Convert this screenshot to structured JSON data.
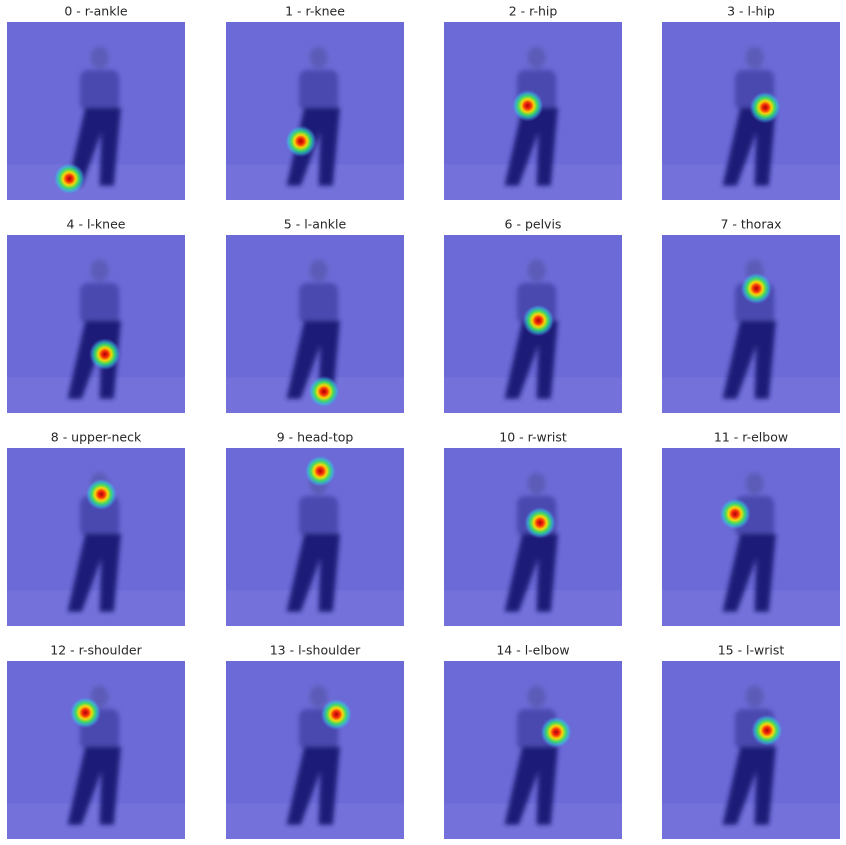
{
  "panels": [
    {
      "title": "0 - r-ankle"
    },
    {
      "title": "1 - r-knee"
    },
    {
      "title": "2 - r-hip"
    },
    {
      "title": "3 - l-hip"
    },
    {
      "title": "4 - l-knee"
    },
    {
      "title": "5 - l-ankle"
    },
    {
      "title": "6 - pelvis"
    },
    {
      "title": "7 - thorax"
    },
    {
      "title": "8 - upper-neck"
    },
    {
      "title": "9 - head-top"
    },
    {
      "title": "10 - r-wrist"
    },
    {
      "title": "11 - r-elbow"
    },
    {
      "title": "12 - r-shoulder"
    },
    {
      "title": "13 - l-shoulder"
    },
    {
      "title": "14 - l-elbow"
    },
    {
      "title": "15 - l-wrist"
    }
  ]
}
